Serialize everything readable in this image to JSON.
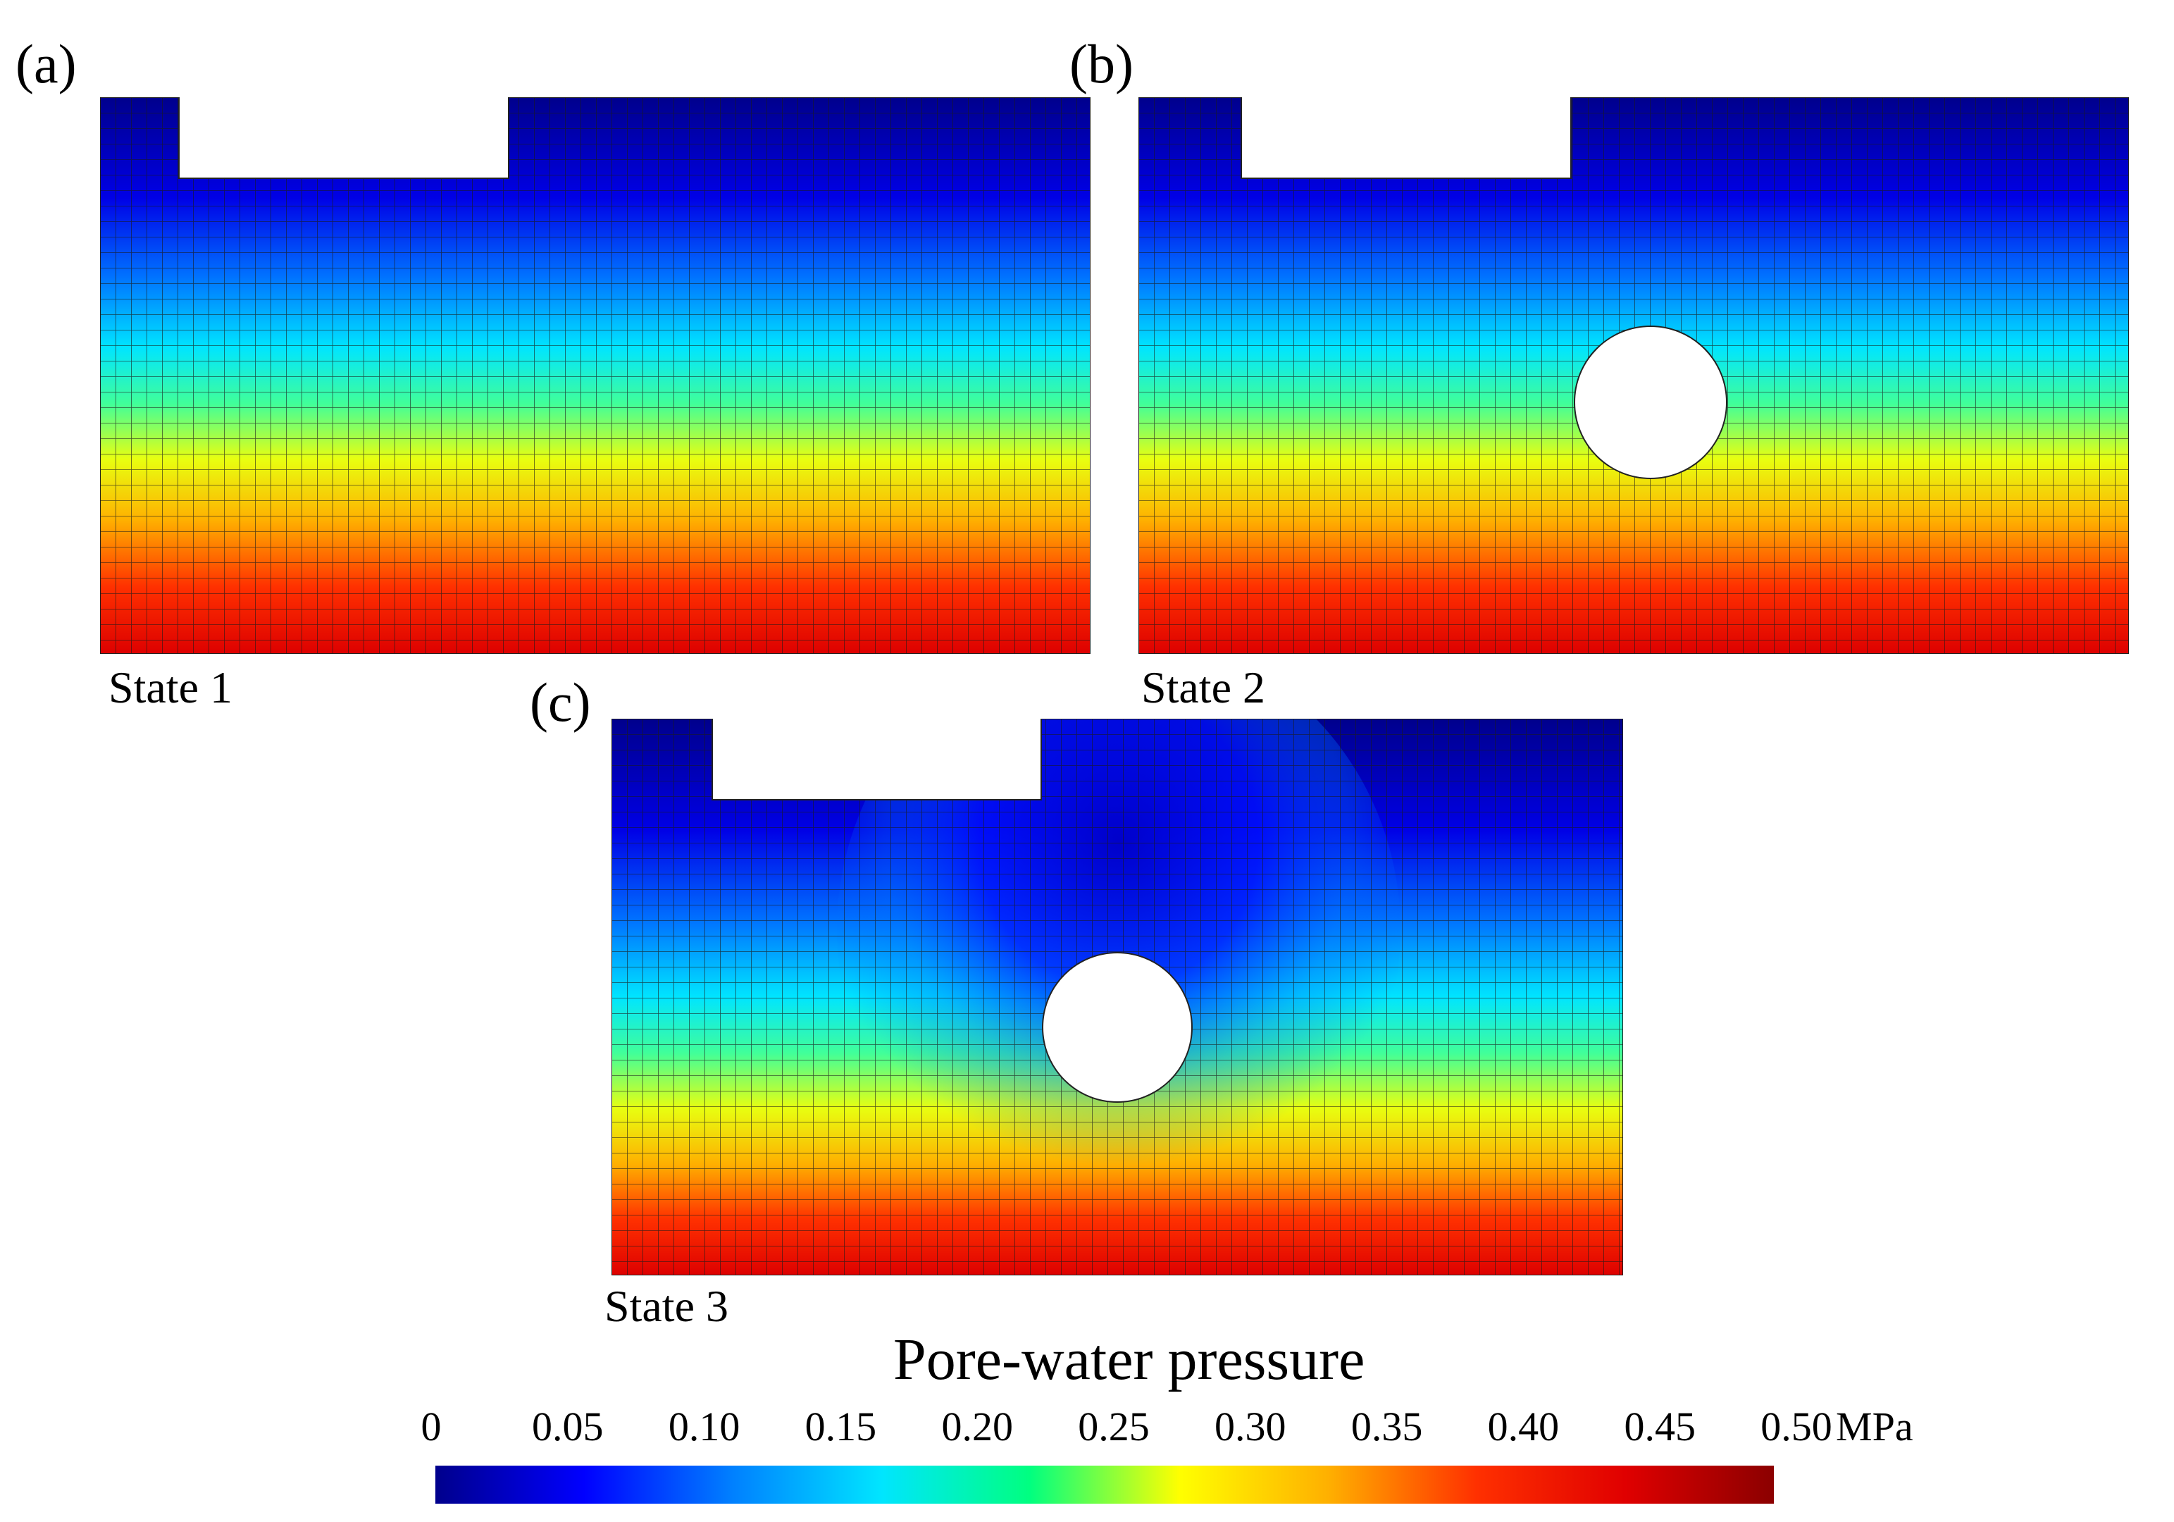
{
  "panels": [
    {
      "letter": "(a)",
      "state": "State 1"
    },
    {
      "letter": "(b)",
      "state": "State 2"
    },
    {
      "letter": "(c)",
      "state": "State 3"
    }
  ],
  "colorbar": {
    "title": "Pore-water pressure",
    "ticks": [
      "0",
      "0.05",
      "0.10",
      "0.15",
      "0.20",
      "0.25",
      "0.30",
      "0.35",
      "0.40",
      "0.45",
      "0.50"
    ],
    "unit": "MPa",
    "min": 0,
    "max": 0.5,
    "colors": [
      "#00008c",
      "#0000ff",
      "#0080ff",
      "#00e5ff",
      "#00ff80",
      "#ffff00",
      "#ffb000",
      "#ff3000",
      "#e00000",
      "#8b0000"
    ]
  }
}
